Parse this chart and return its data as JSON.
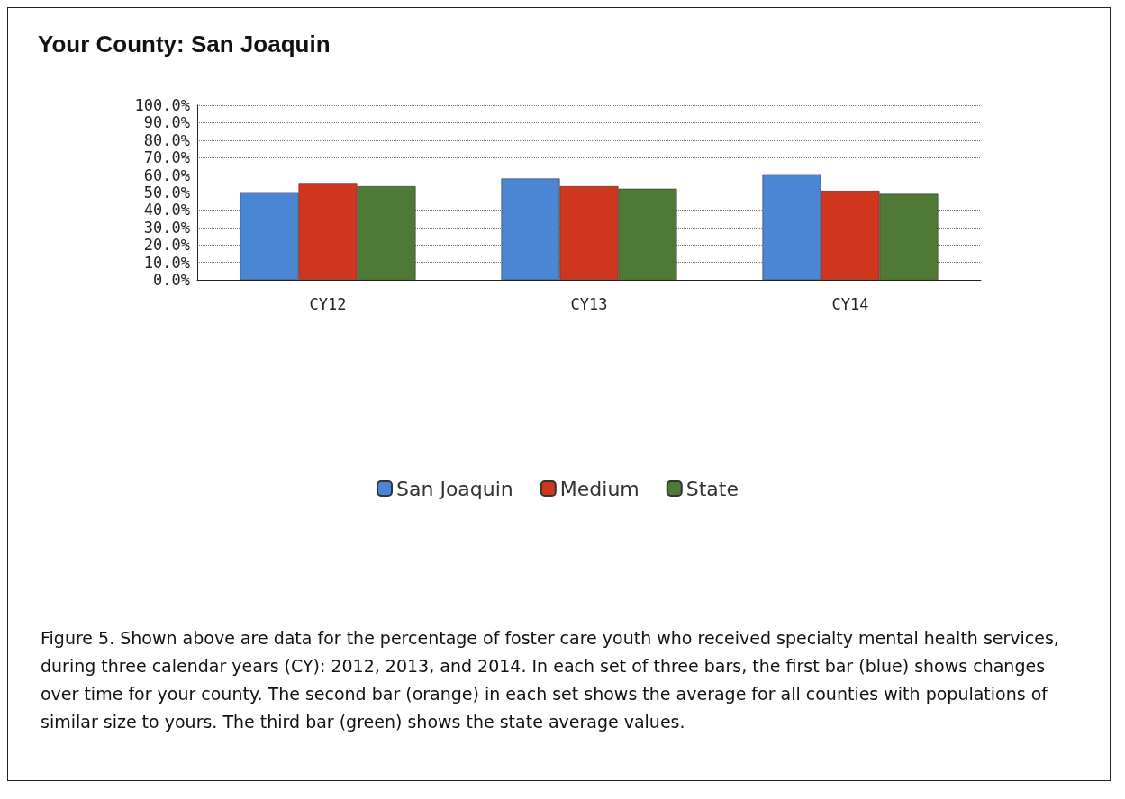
{
  "chart_data": {
    "type": "bar",
    "title": "Your County: San Joaquin",
    "categories": [
      "CY12",
      "CY13",
      "CY14"
    ],
    "series": [
      {
        "name": "San Joaquin",
        "color": "#4a86d4",
        "values": [
          50.2,
          58.0,
          60.5
        ]
      },
      {
        "name": "Medium",
        "color": "#d0351e",
        "values": [
          55.5,
          53.6,
          51.0
        ]
      },
      {
        "name": "State",
        "color": "#4f7a35",
        "values": [
          53.6,
          52.2,
          49.2
        ]
      }
    ],
    "ylim": [
      0,
      100
    ],
    "yticks": [
      {
        "value": 0,
        "label": "0.0%"
      },
      {
        "value": 10,
        "label": "10.0%"
      },
      {
        "value": 20,
        "label": "20.0%"
      },
      {
        "value": 30,
        "label": "30.0%"
      },
      {
        "value": 40,
        "label": "40.0%"
      },
      {
        "value": 50,
        "label": "50.0%"
      },
      {
        "value": 60,
        "label": "60.0%"
      },
      {
        "value": 70,
        "label": "70.0%"
      },
      {
        "value": 80,
        "label": "80.0%"
      },
      {
        "value": 90,
        "label": "90.0%"
      },
      {
        "value": 100,
        "label": "100.0%"
      }
    ],
    "grid": "y",
    "legend": "bottom",
    "annotations": [
      "Figure 5.  Shown above are data for the percentage of foster care youth who received specialty mental health services, during three calendar years (CY):  2012, 2013, and 2014.  In each set of three bars, the first bar (blue) shows changes over time for your county.  The second bar (orange) in each set shows the average for all counties with populations of similar size to yours.  The third bar (green) shows the state average values."
    ]
  }
}
